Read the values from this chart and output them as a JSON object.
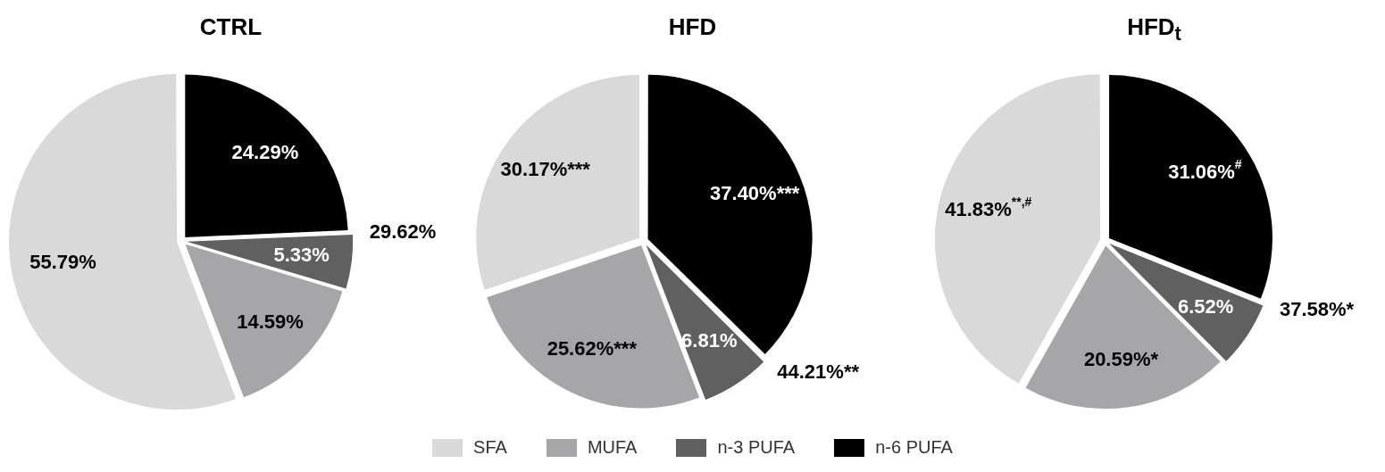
{
  "chart_data": [
    {
      "type": "pie",
      "title": "CTRL",
      "categories": [
        "n-6 PUFA",
        "n-3 PUFA",
        "MUFA",
        "SFA"
      ],
      "values": [
        24.29,
        5.33,
        14.59,
        55.79
      ],
      "colors": [
        "#000000",
        "#606060",
        "#a6a6a8",
        "#d9d9d9"
      ],
      "value_labels": [
        "24.29%",
        "5.33%",
        "14.59%",
        "55.79%"
      ],
      "annotations": [
        "29.62%"
      ],
      "legend": "bottom"
    },
    {
      "type": "pie",
      "title": "HFD",
      "categories": [
        null,
        null,
        null,
        null
      ],
      "values": [
        37.4,
        6.81,
        25.62,
        30.17
      ],
      "colors": [
        "#000000",
        "#606060",
        "#a6a6a8",
        "#d9d9d9"
      ],
      "value_labels": [
        "37.40%***",
        "6.81%",
        "25.62%***",
        "30.17%***"
      ],
      "annotations": [
        "44.21%**"
      ]
    },
    {
      "type": "pie",
      "title": "HFD$_{t}$",
      "categories": [
        null,
        null,
        null,
        null
      ],
      "values": [
        31.06,
        6.52,
        20.59,
        41.83
      ],
      "colors": [
        "#000000",
        "#606060",
        "#a6a6a8",
        "#d9d9d9"
      ],
      "value_labels": [
        "31.06%$^{#}$",
        "6.52%",
        "20.59%*",
        "41.83%$^{**,#}$"
      ],
      "annotations": [
        "37.58%*"
      ]
    }
  ]
}
